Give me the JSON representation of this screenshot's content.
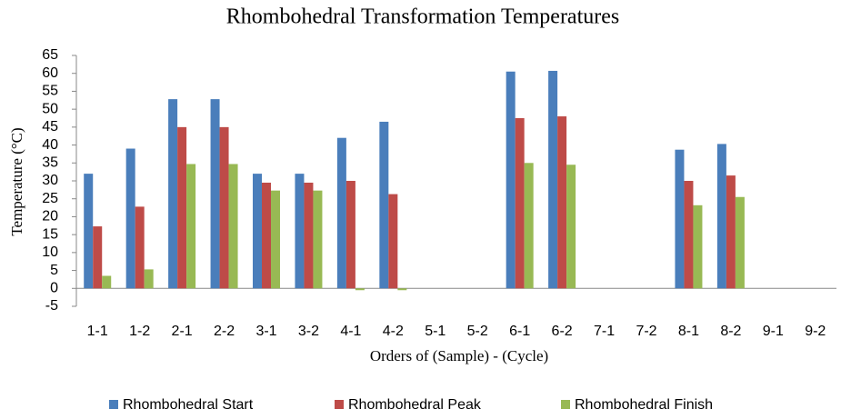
{
  "chart_data": {
    "type": "bar",
    "title": "Rhombohedral Transformation Temperatures",
    "x_label": "Orders of (Sample) - (Cycle)",
    "y_label": "Temperature (°C)",
    "categories": [
      "1-1",
      "1-2",
      "2-1",
      "2-2",
      "3-1",
      "3-2",
      "4-1",
      "4-2",
      "5-1",
      "5-2",
      "6-1",
      "6-2",
      "7-1",
      "7-2",
      "8-1",
      "8-2",
      "9-1",
      "9-2"
    ],
    "series": [
      {
        "name": "Rhombohedral Start",
        "color": "#4a7ebb",
        "values": [
          32,
          39,
          52.8,
          52.8,
          32,
          32,
          42,
          46.5,
          null,
          null,
          60.5,
          60.7,
          null,
          null,
          38.7,
          40.3,
          null,
          null
        ]
      },
      {
        "name": "Rhombohedral Peak",
        "color": "#be4b48",
        "values": [
          17.3,
          22.8,
          45,
          45,
          29.5,
          29.5,
          30,
          26.3,
          null,
          null,
          47.5,
          48,
          null,
          null,
          30,
          31.5,
          null,
          null
        ]
      },
      {
        "name": "Rhombohedral Finish",
        "color": "#98b954",
        "values": [
          3.5,
          5.3,
          34.7,
          34.7,
          27.3,
          27.3,
          -0.5,
          -0.5,
          null,
          null,
          35,
          34.5,
          null,
          null,
          23.2,
          25.5,
          null,
          null
        ]
      }
    ],
    "ylim": [
      -5,
      65
    ],
    "yticks": [
      -5,
      0,
      5,
      10,
      15,
      20,
      25,
      30,
      35,
      40,
      45,
      50,
      55,
      60,
      65
    ],
    "grid": false,
    "legend": "bottom"
  }
}
